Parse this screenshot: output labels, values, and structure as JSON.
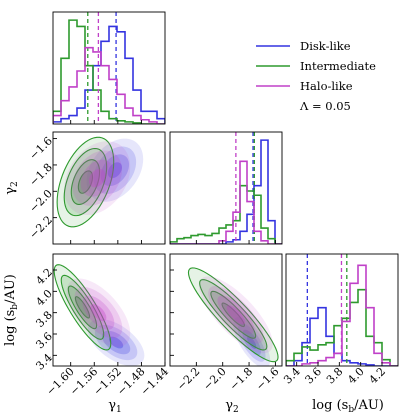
{
  "chart_data": {
    "type": "corner",
    "parameters": [
      {
        "key": "gamma1",
        "label": "γ",
        "sub": "1",
        "range": [
          -1.63,
          -1.44
        ],
        "ticks": [
          -1.6,
          -1.56,
          -1.52,
          -1.48,
          -1.44
        ],
        "tick_labels": [
          "−1.60",
          "−1.56",
          "−1.52",
          "−1.48",
          "−1.44"
        ]
      },
      {
        "key": "gamma2",
        "label": "γ",
        "sub": "2",
        "range": [
          -2.4,
          -1.55
        ],
        "ticks": [
          -2.2,
          -2.0,
          -1.8,
          -1.6
        ],
        "tick_labels": [
          "−2.2",
          "−2.0",
          "−1.8",
          "−1.6"
        ]
      },
      {
        "key": "logsb",
        "label": "log (s",
        "sub": "b",
        "suffix": "/AU)",
        "range": [
          3.3,
          4.35
        ],
        "ticks": [
          3.4,
          3.6,
          3.8,
          4.0,
          4.2
        ],
        "tick_labels": [
          "3.4",
          "3.6",
          "3.8",
          "4.0",
          "4.2"
        ]
      }
    ],
    "series": [
      {
        "name": "Disk-like",
        "color": "#3434e0",
        "medians": {
          "gamma1": -1.523,
          "gamma2": -1.77,
          "logsb": 3.5
        },
        "hist": {
          "gamma1": [
            0.02,
            0.05,
            0.08,
            0.15,
            0.32,
            0.55,
            0.78,
            0.92,
            0.87,
            0.62,
            0.32,
            0.12,
            0.12,
            0.05
          ],
          "gamma2": [
            0,
            0,
            0,
            0,
            0,
            0,
            0,
            0,
            0.02,
            0.04,
            0.12,
            0.28,
            0.55,
            0.98,
            0.22,
            0
          ],
          "logsb": [
            0,
            0.05,
            0.22,
            0.45,
            0.55,
            0.28,
            0.12,
            0.05,
            0.03,
            0.02,
            0.01,
            0,
            0,
            0
          ]
        },
        "ellipses": {
          "g1g2": {
            "cx": -1.525,
            "cy": -1.84,
            "sx": 0.024,
            "sy": 0.12,
            "rho": 0.35
          },
          "g1s": {
            "cx": -1.523,
            "cy": 3.52,
            "sx": 0.024,
            "sy": 0.11,
            "rho": -0.55
          },
          "g2s": {
            "cx": -1.78,
            "cy": 3.52,
            "sx": 0.07,
            "sy": 0.12,
            "rho": -0.7
          }
        }
      },
      {
        "name": "Intermediate",
        "color": "#2e9a2e",
        "medians": {
          "gamma1": -1.571,
          "gamma2": -1.76,
          "logsb": 3.87
        },
        "hist": {
          "gamma1": [
            0.12,
            0.62,
            0.98,
            0.92,
            0.55,
            0.32,
            0.12,
            0.05,
            0.03,
            0.02,
            0.01,
            0,
            0,
            0
          ],
          "gamma2": [
            0.02,
            0.05,
            0.06,
            0.08,
            0.09,
            0.08,
            0.1,
            0.15,
            0.18,
            0.22,
            0.55,
            0.5,
            0.46,
            0.15,
            0.05,
            0
          ],
          "logsb": [
            0.05,
            0.12,
            0.18,
            0.15,
            0.2,
            0.22,
            0.38,
            0.45,
            0.6,
            0.72,
            0.28,
            0.22,
            0.06,
            0
          ]
        },
        "ellipses": {
          "g1g2": {
            "cx": -1.575,
            "cy": -1.93,
            "sx": 0.024,
            "sy": 0.17,
            "rho": 0.45
          },
          "g1s": {
            "cx": -1.58,
            "cy": 3.85,
            "sx": 0.024,
            "sy": 0.2,
            "rho": -0.85
          },
          "g2s": {
            "cx": -1.92,
            "cy": 3.78,
            "sx": 0.17,
            "sy": 0.22,
            "rho": -0.9
          }
        }
      },
      {
        "name": "Halo-like",
        "color": "#c040c8",
        "medians": {
          "gamma1": -1.553,
          "gamma2": -1.9,
          "logsb": 3.82
        },
        "hist": {
          "gamma1": [
            0.08,
            0.22,
            0.35,
            0.5,
            0.72,
            0.68,
            0.55,
            0.42,
            0.28,
            0.15,
            0.08,
            0.04,
            0.02,
            0
          ],
          "gamma2": [
            0,
            0,
            0,
            0,
            0,
            0,
            0,
            0.03,
            0.12,
            0.3,
            0.78,
            0.4,
            0.12,
            0.03,
            0,
            0
          ],
          "logsb": [
            0,
            0,
            0.02,
            0.03,
            0.05,
            0.08,
            0.12,
            0.42,
            0.78,
            0.95,
            0.55,
            0.12,
            0.03,
            0
          ]
        },
        "ellipses": {
          "g1g2": {
            "cx": -1.555,
            "cy": -1.9,
            "sx": 0.028,
            "sy": 0.14,
            "rho": 0.3
          },
          "g1s": {
            "cx": -1.553,
            "cy": 3.8,
            "sx": 0.027,
            "sy": 0.16,
            "rho": -0.6
          },
          "g2s": {
            "cx": -1.9,
            "cy": 3.78,
            "sx": 0.14,
            "sy": 0.18,
            "rho": -0.75
          }
        }
      }
    ],
    "legend": {
      "placement": "top-right",
      "entries": [
        "Disk-like",
        "Intermediate",
        "Halo-like"
      ],
      "extra_text": "Λ = 0.05"
    }
  }
}
